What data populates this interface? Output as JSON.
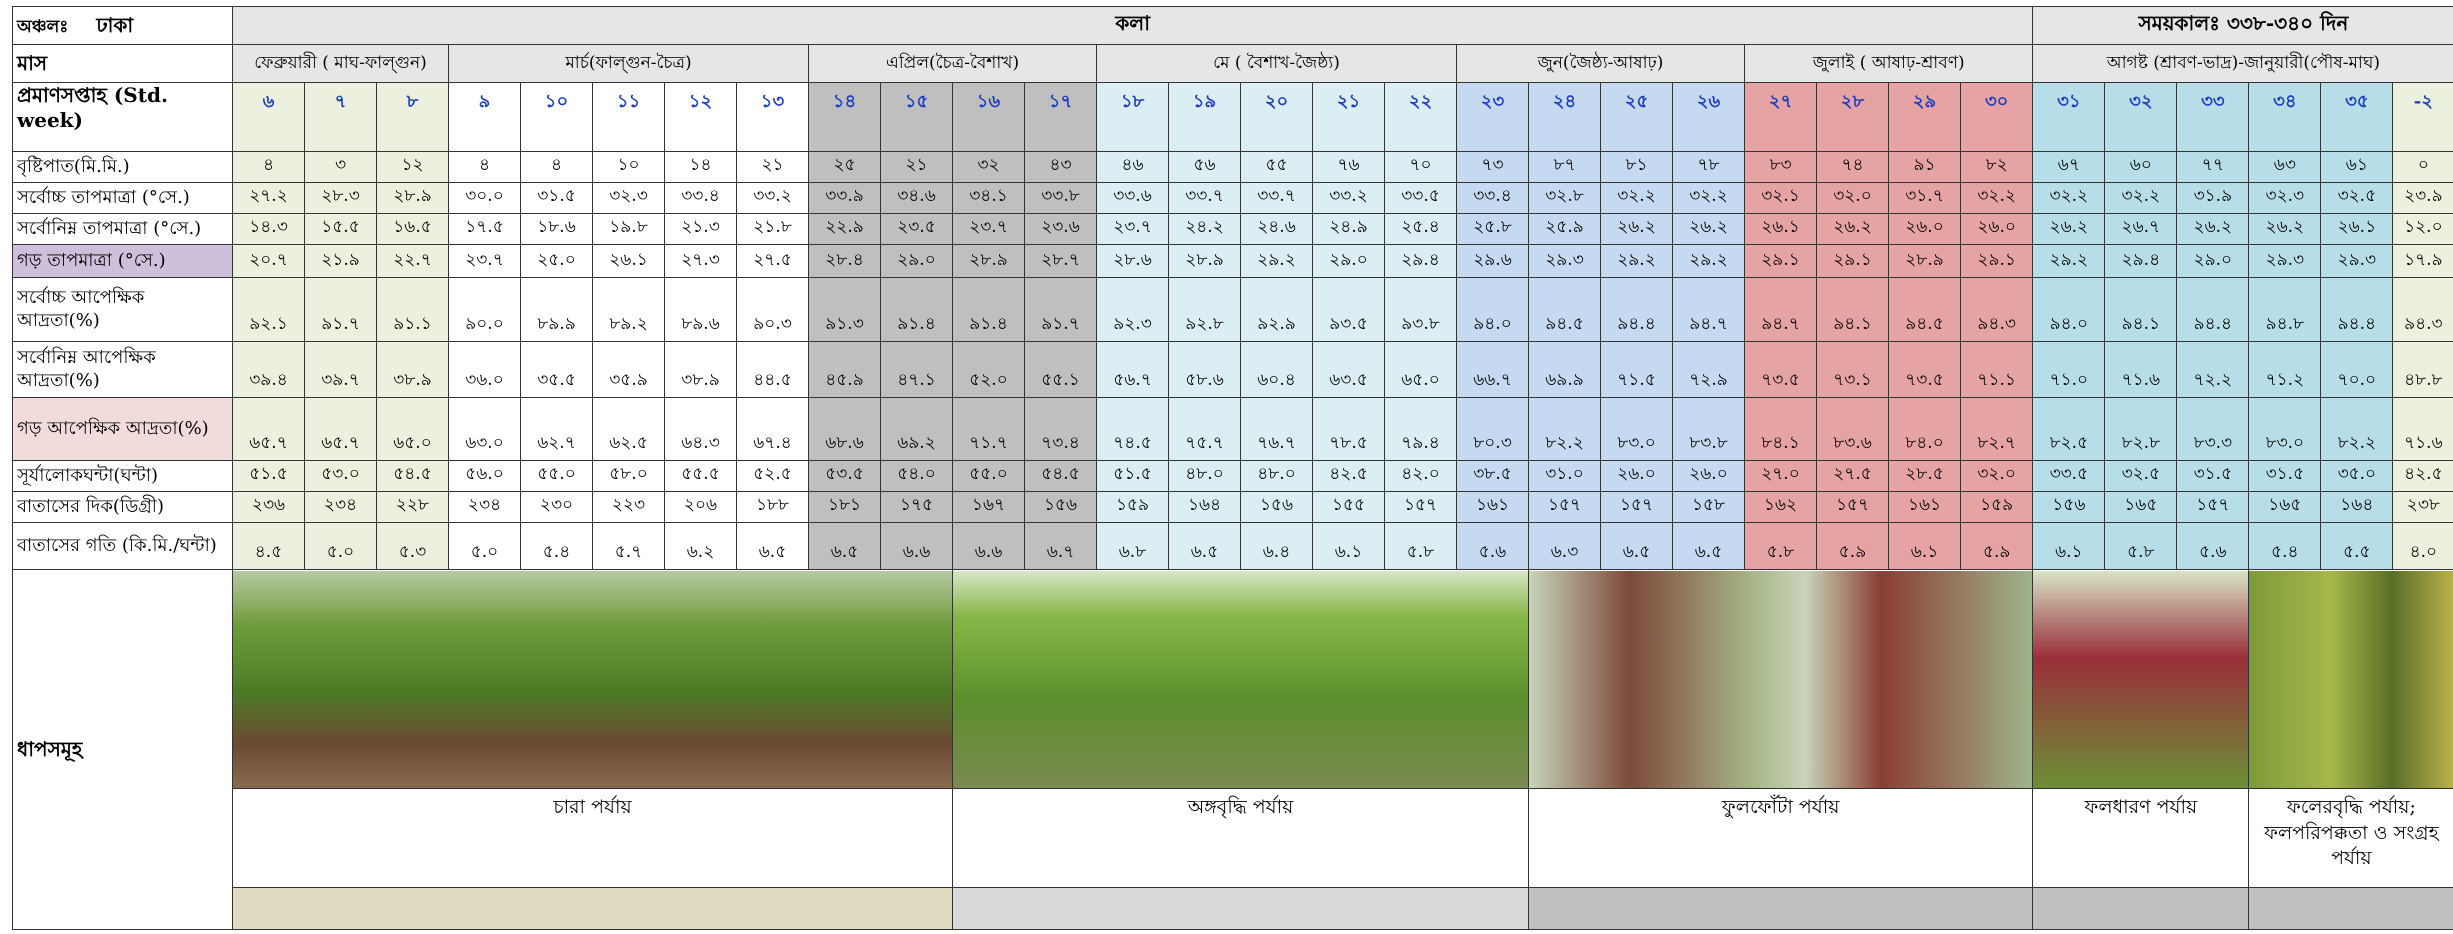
{
  "header": {
    "region_label": "অঞ্চলঃ",
    "region": "ঢাকা",
    "crop": "কলা",
    "duration": "সময়কালঃ ৩৩৮-৩৪০ দিন"
  },
  "month_label": "মাস",
  "months": [
    {
      "label": "ফেব্রুয়ারী ( মাঘ-ফাল্গুন)",
      "weeks": [
        "৬",
        "৭",
        "৮"
      ]
    },
    {
      "label": "মার্চ(ফাল্গুন-চৈত্র)",
      "weeks": [
        "৯",
        "১০",
        "১১",
        "১২",
        "১৩"
      ]
    },
    {
      "label": "এপ্রিল(চৈত্র-বৈশাখ)",
      "weeks": [
        "১৪",
        "১৫",
        "১৬",
        "১৭"
      ]
    },
    {
      "label": "মে ( বৈশাখ-জৈষ্ঠ্য)",
      "weeks": [
        "১৮",
        "১৯",
        "২০",
        "২১",
        "২২"
      ]
    },
    {
      "label": "জুন(জৈষ্ঠ্য-আষাঢ়)",
      "weeks": [
        "২৩",
        "২৪",
        "২৫",
        "২৬"
      ]
    },
    {
      "label": "জুলাই ( আষাঢ়-শ্রাবণ)",
      "weeks": [
        "২৭",
        "২৮",
        "২৯",
        "৩০"
      ]
    },
    {
      "label": "আগষ্ট (শ্রাবণ-ভাদ্র)-জানুয়ারী(পৌষ-মাঘ)",
      "weeks": [
        "৩১",
        "৩২",
        "৩৩",
        "৩৪",
        "৩৫",
        "-২"
      ]
    }
  ],
  "week_label": "প্রমাণসপ্তাহ (Std. week)",
  "rows": [
    {
      "label": "বৃষ্টিপাত(মি.মি.)",
      "values": [
        "৪",
        "৩",
        "১২",
        "৪",
        "৪",
        "১০",
        "১৪",
        "২১",
        "২৫",
        "২১",
        "৩২",
        "৪৩",
        "৪৬",
        "৫৬",
        "৫৫",
        "৭৬",
        "৭০",
        "৭৩",
        "৮৭",
        "৮১",
        "৭৮",
        "৮৩",
        "৭৪",
        "৯১",
        "৮২",
        "৬৭",
        "৬০",
        "৭৭",
        "৬৩",
        "৬১",
        "০"
      ]
    },
    {
      "label": "সর্বোচ্চ তাপমাত্রা (°সে.)",
      "values": [
        "২৭.২",
        "২৮.৩",
        "২৮.৯",
        "৩০.০",
        "৩১.৫",
        "৩২.৩",
        "৩৩.৪",
        "৩৩.২",
        "৩৩.৯",
        "৩৪.৬",
        "৩৪.১",
        "৩৩.৮",
        "৩৩.৬",
        "৩৩.৭",
        "৩৩.৭",
        "৩৩.২",
        "৩৩.৫",
        "৩৩.৪",
        "৩২.৮",
        "৩২.২",
        "৩২.২",
        "৩২.১",
        "৩২.০",
        "৩১.৭",
        "৩২.২",
        "৩২.২",
        "৩২.২",
        "৩১.৯",
        "৩২.৩",
        "৩২.৫",
        "২৩.৯"
      ]
    },
    {
      "label": "সর্বোনিম্ন তাপমাত্রা (°সে.)",
      "values": [
        "১৪.৩",
        "১৫.৫",
        "১৬.৫",
        "১৭.৫",
        "১৮.৬",
        "১৯.৮",
        "২১.৩",
        "২১.৮",
        "২২.৯",
        "২৩.৫",
        "২৩.৭",
        "২৩.৬",
        "২৩.৭",
        "২৪.২",
        "২৪.৬",
        "২৪.৯",
        "২৫.৪",
        "২৫.৮",
        "২৫.৯",
        "২৬.২",
        "২৬.২",
        "২৬.১",
        "২৬.২",
        "২৬.০",
        "২৬.০",
        "২৬.২",
        "২৬.৭",
        "২৬.২",
        "২৬.২",
        "২৬.১",
        "১২.০"
      ]
    },
    {
      "label": "গড় তাপমাত্রা (°সে.)",
      "values": [
        "২০.৭",
        "২১.৯",
        "২২.৭",
        "২৩.৭",
        "২৫.০",
        "২৬.১",
        "২৭.৩",
        "২৭.৫",
        "২৮.৪",
        "২৯.০",
        "২৮.৯",
        "২৮.৭",
        "২৮.৬",
        "২৮.৯",
        "২৯.২",
        "২৯.০",
        "২৯.৪",
        "২৯.৬",
        "২৯.৩",
        "২৯.২",
        "২৯.২",
        "২৯.১",
        "২৯.১",
        "২৮.৯",
        "২৯.১",
        "২৯.২",
        "২৯.৪",
        "২৯.০",
        "২৯.৩",
        "২৯.৩",
        "১৭.৯"
      ]
    },
    {
      "label": "সর্বোচ্চ আপেক্ষিক আদ্রতা(%)",
      "values": [
        "৯২.১",
        "৯১.৭",
        "৯১.১",
        "৯০.০",
        "৮৯.৯",
        "৮৯.২",
        "৮৯.৬",
        "৯০.৩",
        "৯১.৩",
        "৯১.৪",
        "৯১.৪",
        "৯১.৭",
        "৯২.৩",
        "৯২.৮",
        "৯২.৯",
        "৯৩.৫",
        "৯৩.৮",
        "৯৪.০",
        "৯৪.৫",
        "৯৪.৪",
        "৯৪.৭",
        "৯৪.৭",
        "৯৪.১",
        "৯৪.৫",
        "৯৪.৩",
        "৯৪.০",
        "৯৪.১",
        "৯৪.৪",
        "৯৪.৮",
        "৯৪.৪",
        "৯৪.৩"
      ]
    },
    {
      "label": "সর্বোনিম্ন আপেক্ষিক আদ্রতা(%)",
      "values": [
        "৩৯.৪",
        "৩৯.৭",
        "৩৮.৯",
        "৩৬.০",
        "৩৫.৫",
        "৩৫.৯",
        "৩৮.৯",
        "৪৪.৫",
        "৪৫.৯",
        "৪৭.১",
        "৫২.০",
        "৫৫.১",
        "৫৬.৭",
        "৫৮.৬",
        "৬০.৪",
        "৬৩.৫",
        "৬৫.০",
        "৬৬.৭",
        "৬৯.৯",
        "৭১.৫",
        "৭২.৯",
        "৭৩.৫",
        "৭৩.১",
        "৭৩.৫",
        "৭১.১",
        "৭১.০",
        "৭১.৬",
        "৭২.২",
        "৭১.২",
        "৭০.০",
        "৪৮.৮"
      ]
    },
    {
      "label": "গড় আপেক্ষিক আদ্রতা(%)",
      "values": [
        "৬৫.৭",
        "৬৫.৭",
        "৬৫.০",
        "৬৩.০",
        "৬২.৭",
        "৬২.৫",
        "৬৪.৩",
        "৬৭.৪",
        "৬৮.৬",
        "৬৯.২",
        "৭১.৭",
        "৭৩.৪",
        "৭৪.৫",
        "৭৫.৭",
        "৭৬.৭",
        "৭৮.৫",
        "৭৯.৪",
        "৮০.৩",
        "৮২.২",
        "৮৩.০",
        "৮৩.৮",
        "৮৪.১",
        "৮৩.৬",
        "৮৪.০",
        "৮২.৭",
        "৮২.৫",
        "৮২.৮",
        "৮৩.৩",
        "৮৩.০",
        "৮২.২",
        "৭১.৬"
      ]
    },
    {
      "label": "সূর্যালোকঘন্টা(ঘন্টা)",
      "values": [
        "৫১.৫",
        "৫৩.০",
        "৫৪.৫",
        "৫৬.০",
        "৫৫.০",
        "৫৮.০",
        "৫৫.৫",
        "৫২.৫",
        "৫৩.৫",
        "৫৪.০",
        "৫৫.০",
        "৫৪.৫",
        "৫১.৫",
        "৪৮.০",
        "৪৮.০",
        "৪২.৫",
        "৪২.০",
        "৩৮.৫",
        "৩১.০",
        "২৬.০",
        "২৬.০",
        "২৭.০",
        "২৭.৫",
        "২৮.৫",
        "৩২.০",
        "৩৩.৫",
        "৩২.৫",
        "৩১.৫",
        "৩১.৫",
        "৩৫.০",
        "৪২.৫"
      ]
    },
    {
      "label": "বাতাসের দিক(ডিগ্রী)",
      "values": [
        "২৩৬",
        "২৩৪",
        "২২৮",
        "২৩৪",
        "২৩০",
        "২২৩",
        "২০৬",
        "১৮৮",
        "১৮১",
        "১৭৫",
        "১৬৭",
        "১৫৬",
        "১৫৯",
        "১৬৪",
        "১৫৬",
        "১৫৫",
        "১৫৭",
        "১৬১",
        "১৫৭",
        "১৫৭",
        "১৫৮",
        "১৬২",
        "১৫৭",
        "১৬১",
        "১৫৯",
        "১৫৬",
        "১৬৫",
        "১৫৭",
        "১৬৫",
        "১৬৪",
        "২৩৮"
      ]
    },
    {
      "label": "বাতাসের গতি (কি.মি./ঘন্টা)",
      "values": [
        "৪.৫",
        "৫.০",
        "৫.৩",
        "৫.০",
        "৫.৪",
        "৫.৭",
        "৬.২",
        "৬.৫",
        "৬.৫",
        "৬.৬",
        "৬.৬",
        "৬.৭",
        "৬.৮",
        "৬.৫",
        "৬.৪",
        "৬.১",
        "৫.৮",
        "৫.৬",
        "৬.৩",
        "৬.৫",
        "৬.৫",
        "৫.৮",
        "৫.৯",
        "৬.১",
        "৫.৯",
        "৬.১",
        "৫.৮",
        "৫.৬",
        "৫.৪",
        "৫.৫",
        "৪.০"
      ]
    }
  ],
  "stages": {
    "label": "ধাপসমূহ",
    "items": [
      "চারা পর্যায়",
      "অঙ্গবৃদ্ধি পর্যায়",
      "ফুলফোঁটা পর্যায়",
      "ফলধারণ পর্যায়",
      "ফলেরবৃদ্ধি পর্যায়; ফলপরিপক্কতা ও সংগ্রহ পর্যায়"
    ]
  }
}
